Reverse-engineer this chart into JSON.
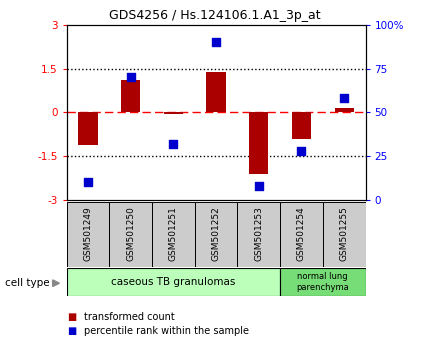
{
  "title": "GDS4256 / Hs.124106.1.A1_3p_at",
  "samples": [
    "GSM501249",
    "GSM501250",
    "GSM501251",
    "GSM501252",
    "GSM501253",
    "GSM501254",
    "GSM501255"
  ],
  "transformed_count": [
    -1.1,
    1.1,
    -0.05,
    1.4,
    -2.1,
    -0.9,
    0.15
  ],
  "percentile_rank": [
    10,
    70,
    32,
    90,
    8,
    28,
    58
  ],
  "ylim_left": [
    -3,
    3
  ],
  "ylim_right": [
    0,
    100
  ],
  "yticks_left": [
    -3,
    -1.5,
    0,
    1.5,
    3
  ],
  "ytick_labels_left": [
    "-3",
    "-1.5",
    "0",
    "1.5",
    "3"
  ],
  "yticks_right": [
    0,
    25,
    50,
    75,
    100
  ],
  "ytick_labels_right": [
    "0",
    "25",
    "50",
    "75",
    "100%"
  ],
  "bar_color": "#aa0000",
  "dot_color": "#0000cc",
  "bar_width": 0.45,
  "dot_size": 40,
  "group1_color": "#bbffbb",
  "group2_color": "#77dd77",
  "sample_box_color": "#cccccc",
  "legend_items": [
    {
      "color": "#aa0000",
      "label": "transformed count"
    },
    {
      "color": "#0000cc",
      "label": "percentile rank within the sample"
    }
  ],
  "cell_type_label": "cell type"
}
